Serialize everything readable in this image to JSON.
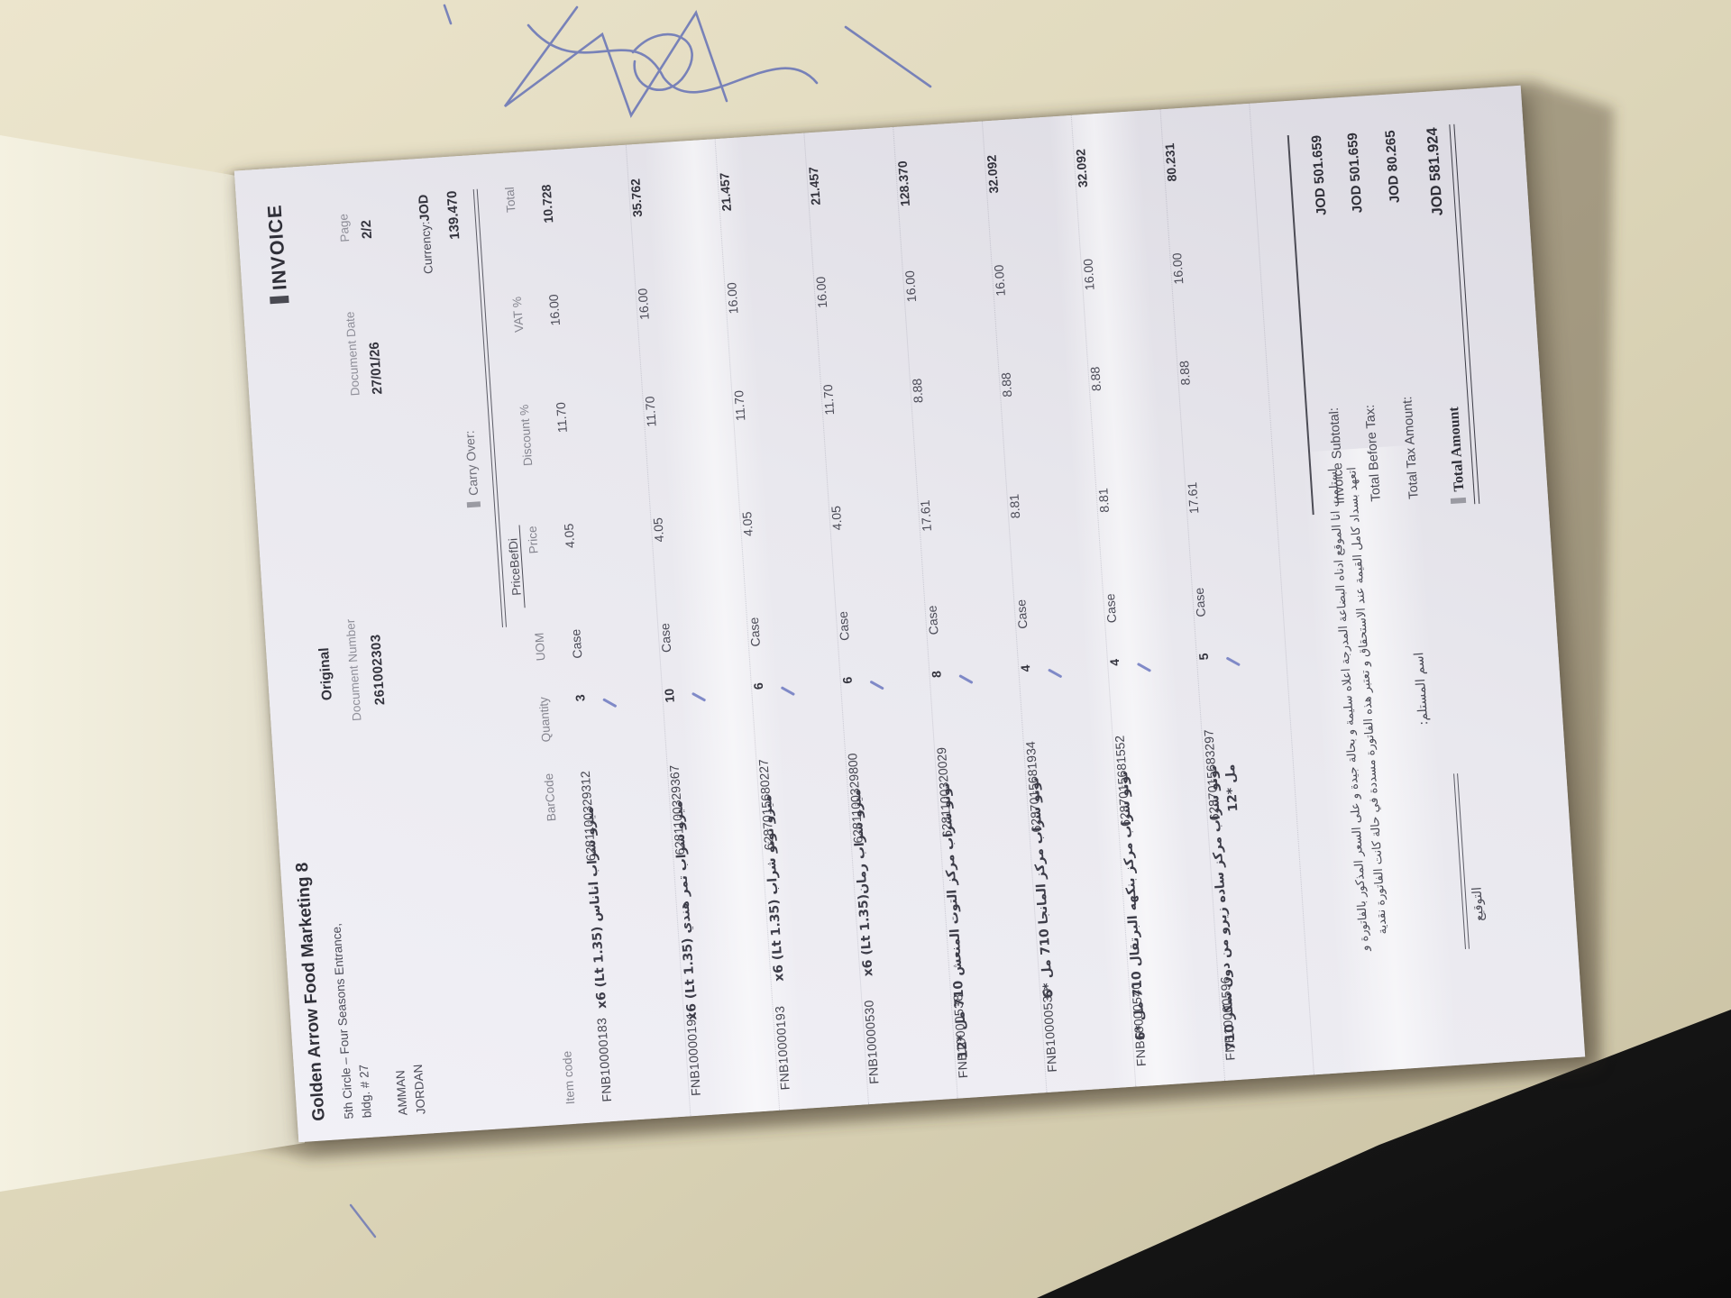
{
  "scene": {
    "desk_color": "#d9d2b4",
    "fabric_color": "#161616",
    "pen_color": "#5d6bb6",
    "paper_color": "#e9e8ee"
  },
  "invoice": {
    "title": "INVOICE",
    "company": {
      "name": "Golden Arrow Food Marketing",
      "brand_mark": "8",
      "address_line1": "5th Circle – Four Seasons Entrance,",
      "address_line2": "bldg. # 27",
      "city": "AMMAN",
      "country": "JORDAN"
    },
    "copy_type": "Original",
    "document_number_label": "Document Number",
    "document_number": "261002303",
    "document_date_label": "Document Date",
    "document_date": "27/01/26",
    "page_label": "Page",
    "page_value": "2/2",
    "currency_label": "Currency:",
    "currency": "JOD",
    "carry_over_label": "Carry Over:",
    "carry_over_value": "139.470",
    "price_bef_label": "PriceBefDi",
    "columns": {
      "item_code": "Item code",
      "barcode": "BarCode",
      "quantity": "Quantity",
      "uom": "UOM",
      "price": "Price",
      "discount": "Discount %",
      "vat": "VAT %",
      "total": "Total"
    },
    "rows": [
      {
        "item_code": "FNB10000183",
        "barcode": "6281100329312",
        "description": "ميزو شراب اناناس (1.35 Lt) x6",
        "quantity": "3",
        "uom": "Case",
        "price": "4.05",
        "discount": "11.70",
        "vat": "16.00",
        "total": "10.728"
      },
      {
        "item_code": "FNB10000191",
        "barcode": "6281100329367",
        "description": "ميزو شراب تمر هندي (1.35 Lt) x6",
        "quantity": "10",
        "uom": "Case",
        "price": "4.05",
        "discount": "11.70",
        "vat": "16.00",
        "total": "35.762"
      },
      {
        "item_code": "FNB10000193",
        "barcode": "6287015680227",
        "description": "ميزو تونو شراب (1.35 Lt) x6",
        "quantity": "6",
        "uom": "Case",
        "price": "4.05",
        "discount": "11.70",
        "vat": "16.00",
        "total": "21.457"
      },
      {
        "item_code": "FNB10000530",
        "barcode": "6281100329800",
        "description": "ميزو شراب رمان(1.35 Lt) x6",
        "quantity": "6",
        "uom": "Case",
        "price": "4.05",
        "discount": "11.70",
        "vat": "16.00",
        "total": "21.457"
      },
      {
        "item_code": "FNB10000538",
        "barcode": "6281100320029",
        "description": "تونو شراب مركز التوت المنعش 710 مل *12",
        "quantity": "8",
        "uom": "Case",
        "price": "17.61",
        "discount": "8.88",
        "vat": "16.00",
        "total": "128.370"
      },
      {
        "item_code": "FNB10000539",
        "barcode": "6287015681934",
        "description": "تونو شراب مركز المانجا 710 مل *6",
        "quantity": "4",
        "uom": "Case",
        "price": "8.81",
        "discount": "8.88",
        "vat": "16.00",
        "total": "32.092"
      },
      {
        "item_code": "FNB10000540",
        "barcode": "6287015681552",
        "description": "تونو شراب مركز بنكهه البرتقال 710 مل *6",
        "quantity": "4",
        "uom": "Case",
        "price": "8.81",
        "discount": "8.88",
        "vat": "16.00",
        "total": "32.092"
      },
      {
        "item_code": "FNB10000596",
        "barcode": "6287015683297",
        "description": "تونو شراب مركز ساده زيرو من دون سكر 710 مل *12",
        "quantity": "5",
        "uom": "Case",
        "price": "17.61",
        "discount": "8.88",
        "vat": "16.00",
        "total": "80.231"
      }
    ],
    "footer": {
      "disclaimer_line1": "استلمت انا الموقع ادناه البضاعة المدرجة اعلاه سليمة و بحالة جيدة و على السعر المذكور بالفاتورة و",
      "disclaimer_line2": "اتعهد بسداد كامل القيمة عند الاستحقاق و تعتبر هذه الفاتورة مسددة في حالة كانت الفاتورة نقدية",
      "recipient_label": "اسم المستلم:",
      "signature_label": "التوقيع",
      "subtotal_label": "Invoice Subtotal:",
      "subtotal_value": "JOD 501.659",
      "before_tax_label": "Total Before Tax:",
      "before_tax_value": "JOD 501.659",
      "tax_label": "Total Tax Amount:",
      "tax_value": "JOD 80.265",
      "total_label": "Total Amount",
      "total_value": "JOD 581.924"
    }
  }
}
